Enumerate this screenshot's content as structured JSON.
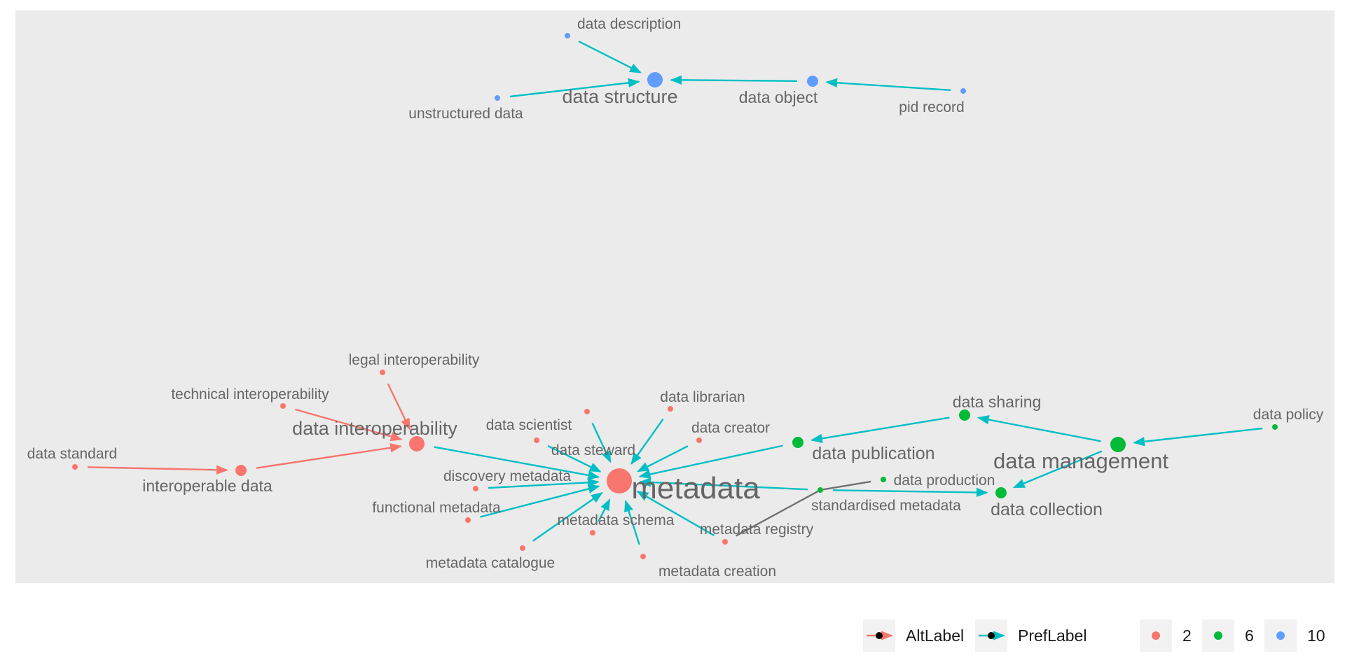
{
  "colors": {
    "panel": "#EBEBEB",
    "altlabel_edge": "#F8766D",
    "preflabel_edge": "#00BFC4",
    "other_edge": "#707070",
    "group_2": "#F8766D",
    "group_6": "#00BA38",
    "group_10": "#619CFF",
    "label": "#666666"
  },
  "nodes": [
    {
      "id": "data_structure",
      "label": "data structure",
      "group": "10",
      "size": "large"
    },
    {
      "id": "data_description",
      "label": "data description",
      "group": "10",
      "size": "small"
    },
    {
      "id": "unstructured_data",
      "label": "unstructured data",
      "group": "10",
      "size": "small"
    },
    {
      "id": "data_object",
      "label": "data object",
      "group": "10",
      "size": "medium"
    },
    {
      "id": "pid_record",
      "label": "pid record",
      "group": "10",
      "size": "small"
    },
    {
      "id": "metadata",
      "label": "metadata",
      "group": "2",
      "size": "xlarge"
    },
    {
      "id": "data_interoperability",
      "label": "data interoperability",
      "group": "2",
      "size": "large"
    },
    {
      "id": "interoperable_data",
      "label": "interoperable data",
      "group": "2",
      "size": "medium"
    },
    {
      "id": "data_standard",
      "label": "data standard",
      "group": "2",
      "size": "small"
    },
    {
      "id": "technical_interoperability",
      "label": "technical interoperability",
      "group": "2",
      "size": "small"
    },
    {
      "id": "legal_interoperability",
      "label": "legal interoperability",
      "group": "2",
      "size": "small"
    },
    {
      "id": "data_scientist",
      "label": "data scientist",
      "group": "2",
      "size": "small"
    },
    {
      "id": "data_steward",
      "label": "data steward",
      "group": "2",
      "size": "small"
    },
    {
      "id": "data_librarian",
      "label": "data librarian",
      "group": "2",
      "size": "small"
    },
    {
      "id": "data_creator",
      "label": "data creator",
      "group": "2",
      "size": "small"
    },
    {
      "id": "discovery_metadata",
      "label": "discovery metadata",
      "group": "2",
      "size": "small"
    },
    {
      "id": "functional_metadata",
      "label": "functional metadata",
      "group": "2",
      "size": "small"
    },
    {
      "id": "metadata_catalogue",
      "label": "metadata catalogue",
      "group": "2",
      "size": "small"
    },
    {
      "id": "metadata_schema",
      "label": "metadata schema",
      "group": "2",
      "size": "small"
    },
    {
      "id": "metadata_creation",
      "label": "metadata creation",
      "group": "2",
      "size": "small"
    },
    {
      "id": "metadata_registry",
      "label": "metadata registry",
      "group": "2",
      "size": "small"
    },
    {
      "id": "data_publication",
      "label": "data publication",
      "group": "6",
      "size": "medium"
    },
    {
      "id": "data_sharing",
      "label": "data sharing",
      "group": "6",
      "size": "medium"
    },
    {
      "id": "data_management",
      "label": "data management",
      "group": "6",
      "size": "large"
    },
    {
      "id": "data_policy",
      "label": "data policy",
      "group": "6",
      "size": "small"
    },
    {
      "id": "data_collection",
      "label": "data collection",
      "group": "6",
      "size": "medium"
    },
    {
      "id": "data_production",
      "label": "data production",
      "group": "6",
      "size": "small"
    },
    {
      "id": "standardised_metadata",
      "label": "standardised metadata",
      "group": "6",
      "size": "small"
    }
  ],
  "edges": [
    {
      "from": "data_description",
      "to": "data_structure",
      "type": "PrefLabel"
    },
    {
      "from": "unstructured_data",
      "to": "data_structure",
      "type": "PrefLabel"
    },
    {
      "from": "data_object",
      "to": "data_structure",
      "type": "PrefLabel"
    },
    {
      "from": "pid_record",
      "to": "data_object",
      "type": "PrefLabel"
    },
    {
      "from": "data_standard",
      "to": "interoperable_data",
      "type": "AltLabel"
    },
    {
      "from": "interoperable_data",
      "to": "data_interoperability",
      "type": "AltLabel"
    },
    {
      "from": "technical_interoperability",
      "to": "data_interoperability",
      "type": "AltLabel"
    },
    {
      "from": "legal_interoperability",
      "to": "data_interoperability",
      "type": "AltLabel"
    },
    {
      "from": "data_interoperability",
      "to": "metadata",
      "type": "PrefLabel"
    },
    {
      "from": "data_scientist",
      "to": "metadata",
      "type": "PrefLabel"
    },
    {
      "from": "data_steward",
      "to": "metadata",
      "type": "PrefLabel"
    },
    {
      "from": "data_librarian",
      "to": "metadata",
      "type": "PrefLabel"
    },
    {
      "from": "data_creator",
      "to": "metadata",
      "type": "PrefLabel"
    },
    {
      "from": "discovery_metadata",
      "to": "metadata",
      "type": "PrefLabel"
    },
    {
      "from": "functional_metadata",
      "to": "metadata",
      "type": "PrefLabel"
    },
    {
      "from": "metadata_catalogue",
      "to": "metadata",
      "type": "PrefLabel"
    },
    {
      "from": "metadata_schema",
      "to": "metadata",
      "type": "PrefLabel"
    },
    {
      "from": "metadata_creation",
      "to": "metadata",
      "type": "PrefLabel"
    },
    {
      "from": "metadata_registry",
      "to": "metadata",
      "type": "PrefLabel"
    },
    {
      "from": "data_publication",
      "to": "metadata",
      "type": "PrefLabel"
    },
    {
      "from": "standardised_metadata",
      "to": "metadata",
      "type": "PrefLabel"
    },
    {
      "from": "data_sharing",
      "to": "data_publication",
      "type": "PrefLabel"
    },
    {
      "from": "data_management",
      "to": "data_sharing",
      "type": "PrefLabel"
    },
    {
      "from": "data_policy",
      "to": "data_management",
      "type": "PrefLabel"
    },
    {
      "from": "data_management",
      "to": "data_collection",
      "type": "PrefLabel"
    },
    {
      "from": "standardised_metadata",
      "to": "data_collection",
      "type": "PrefLabel"
    },
    {
      "from": "data_production",
      "to": "standardised_metadata",
      "type": "other"
    },
    {
      "from": "metadata_registry",
      "to": "standardised_metadata",
      "type": "other"
    }
  ],
  "legend": {
    "edge_types": [
      {
        "label": "AltLabel",
        "color": "#F8766D"
      },
      {
        "label": "PrefLabel",
        "color": "#00BFC4"
      }
    ],
    "groups": [
      {
        "label": "2",
        "color": "#F8766D"
      },
      {
        "label": "6",
        "color": "#00BA38"
      },
      {
        "label": "10",
        "color": "#619CFF"
      }
    ]
  }
}
